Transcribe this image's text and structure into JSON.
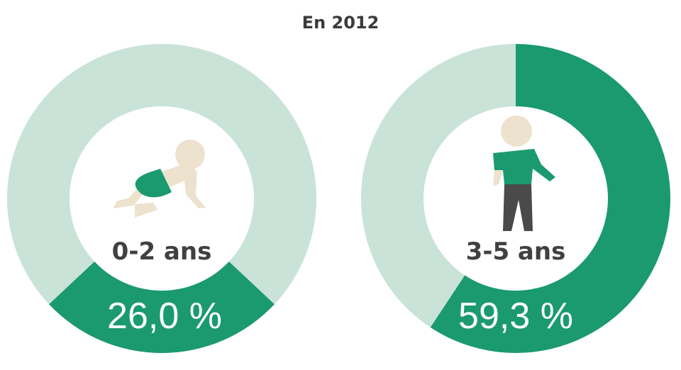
{
  "chart_data": {
    "type": "pie",
    "title": "En 2012",
    "colors": {
      "value": "#1a9a6e",
      "rest": "#c9e3d8",
      "skin": "#ede2cd",
      "pants": "#4a4a4a",
      "text": "#404040"
    },
    "charts": [
      {
        "category": "0-2 ans",
        "value": 26.0,
        "label": "26,0 %",
        "icon": "crawling-baby-icon",
        "start": "bottom-centered"
      },
      {
        "category": "3-5 ans",
        "value": 59.3,
        "label": "59,3 %",
        "icon": "standing-child-icon",
        "start": "top-clockwise"
      }
    ]
  }
}
